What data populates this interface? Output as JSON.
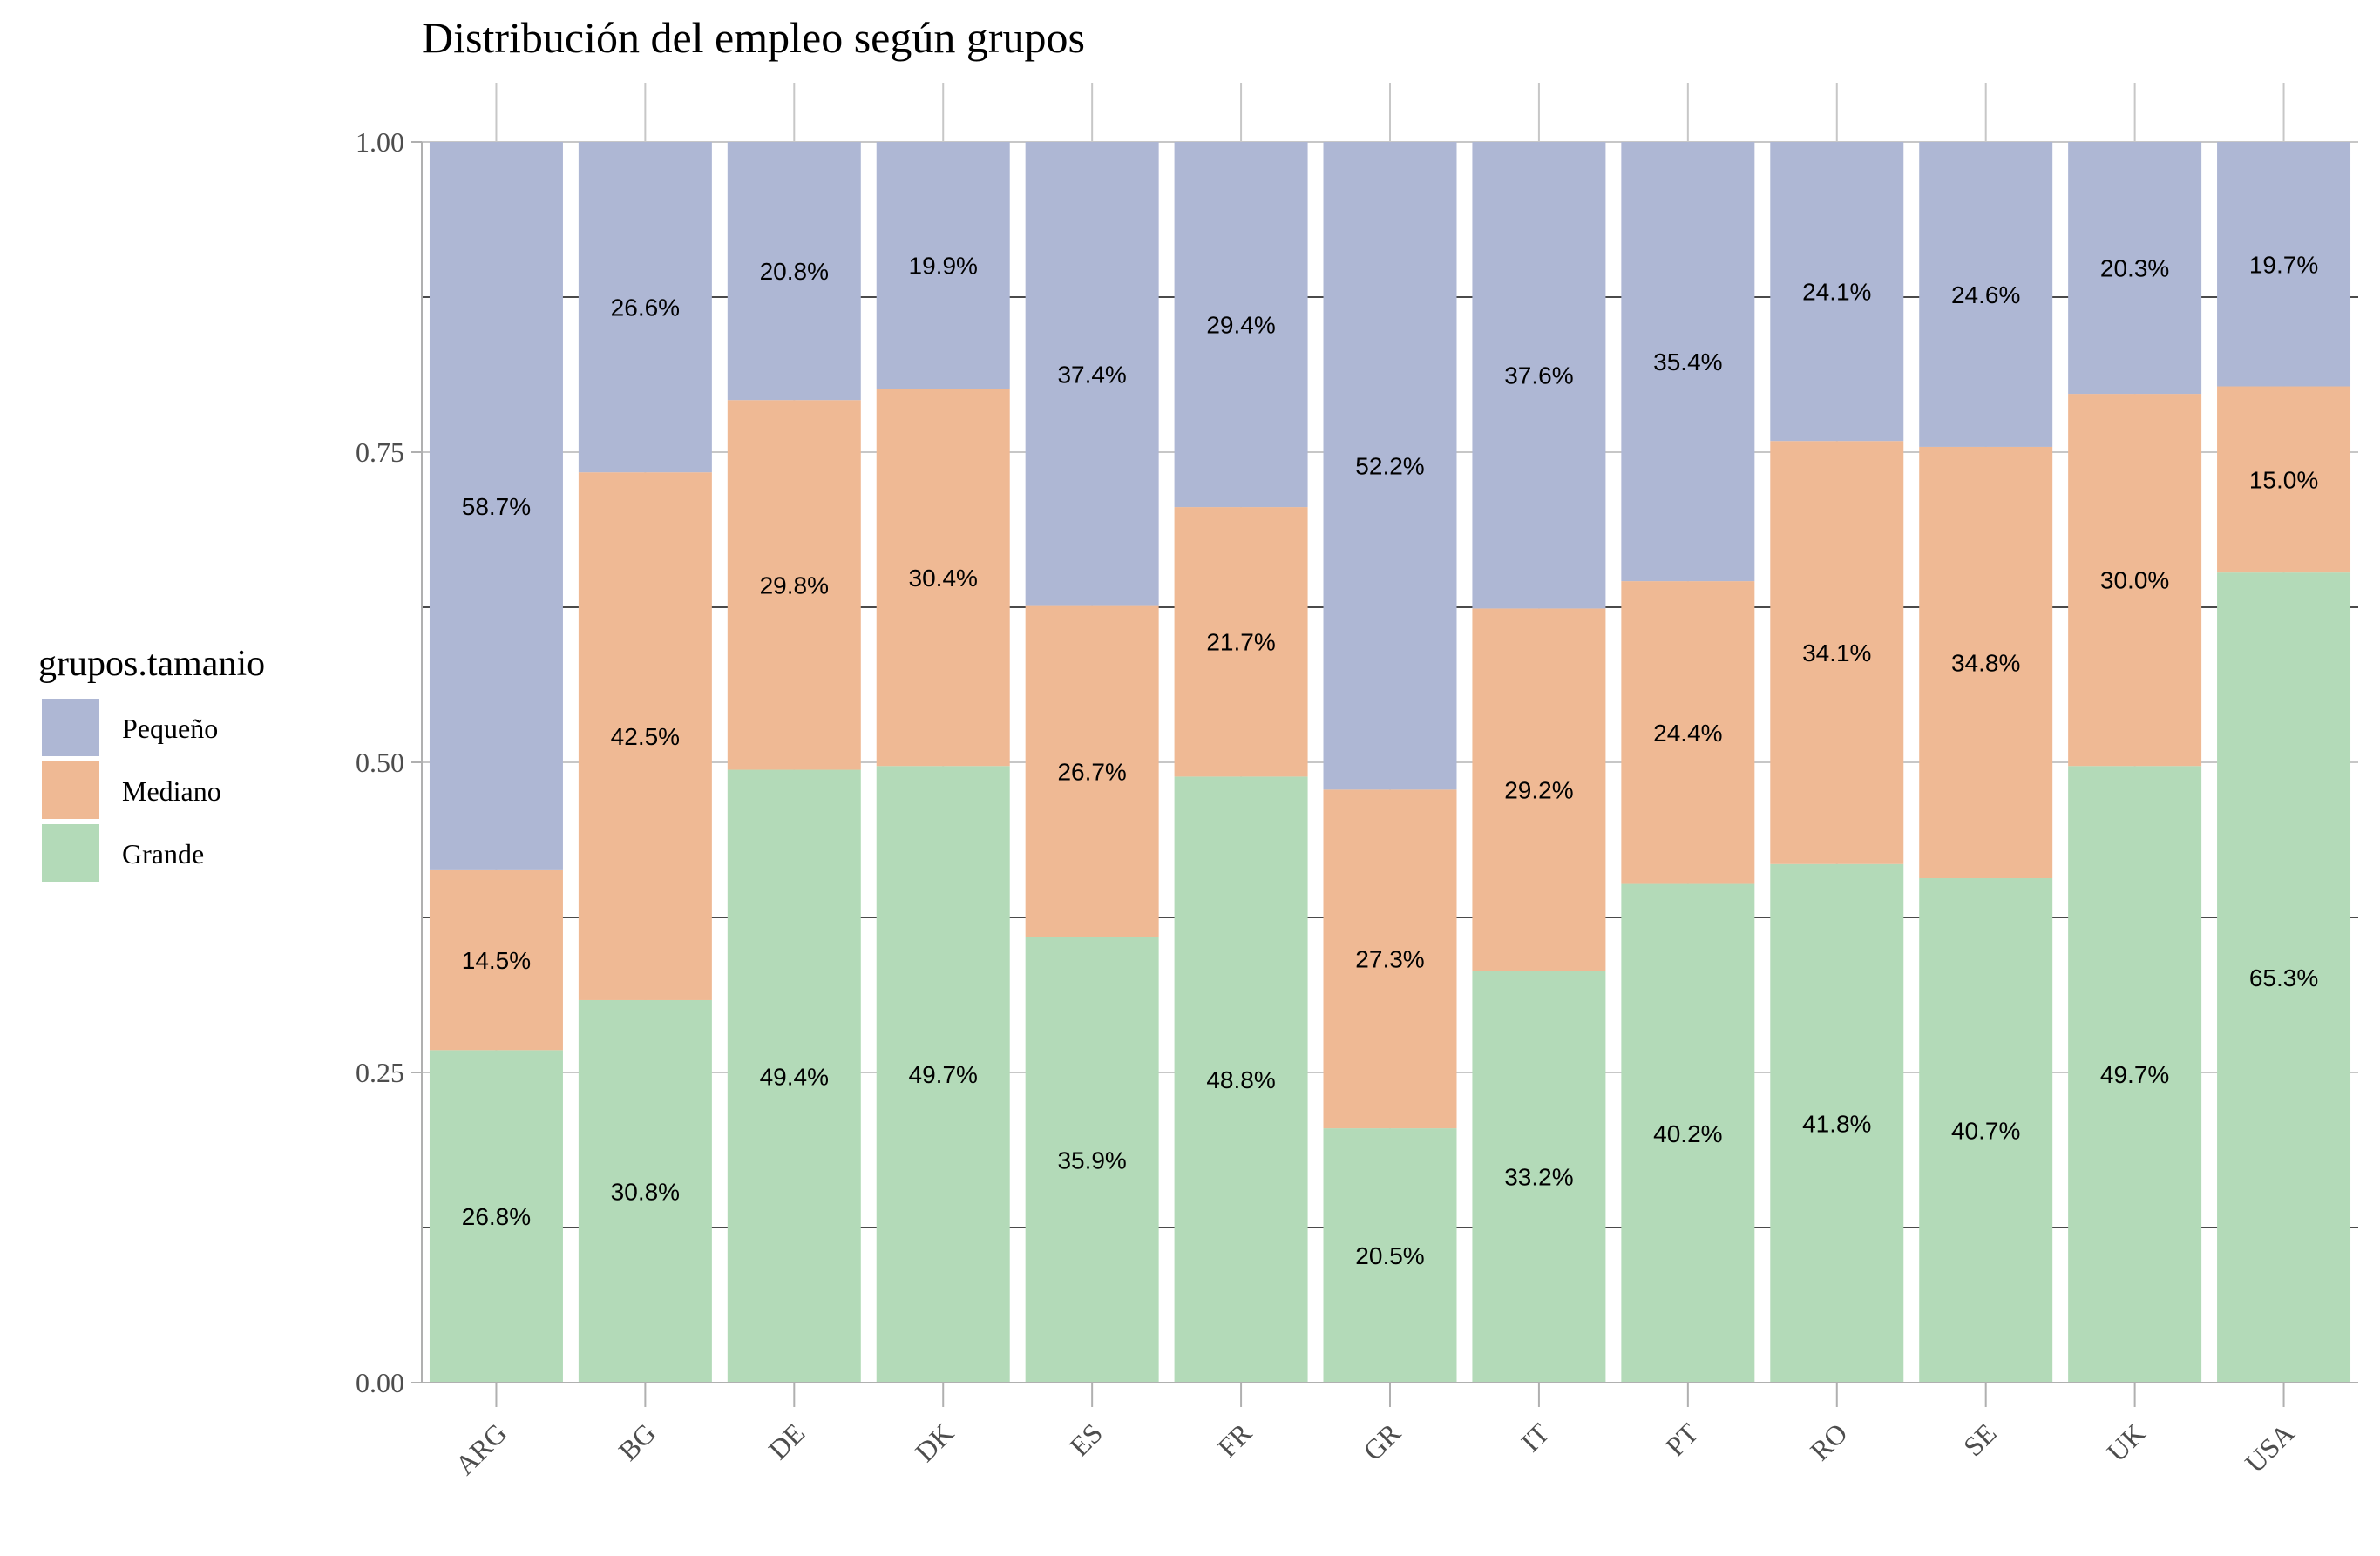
{
  "chart_data": {
    "type": "bar",
    "stacked": true,
    "normalized": true,
    "title": "Distribución del empleo según grupos",
    "xlabel": "",
    "ylabel": "",
    "ylim": [
      0,
      1
    ],
    "yticks": [
      "0.00",
      "0.25",
      "0.50",
      "0.75",
      "1.00"
    ],
    "categories": [
      "ARG",
      "BG",
      "DE",
      "DK",
      "ES",
      "FR",
      "GR",
      "IT",
      "PT",
      "RO",
      "SE",
      "UK",
      "USA"
    ],
    "series": [
      {
        "name": "Pequeño",
        "color": "#aeb7d4",
        "values": [
          0.587,
          0.266,
          0.208,
          0.199,
          0.374,
          0.294,
          0.522,
          0.376,
          0.354,
          0.241,
          0.246,
          0.203,
          0.197
        ],
        "labels": [
          "58.7%",
          "26.6%",
          "20.8%",
          "19.9%",
          "37.4%",
          "29.4%",
          "52.2%",
          "37.6%",
          "35.4%",
          "24.1%",
          "24.6%",
          "20.3%",
          "19.7%"
        ]
      },
      {
        "name": "Mediano",
        "color": "#efb994",
        "values": [
          0.145,
          0.425,
          0.298,
          0.304,
          0.267,
          0.217,
          0.273,
          0.292,
          0.244,
          0.341,
          0.348,
          0.3,
          0.15
        ],
        "labels": [
          "14.5%",
          "42.5%",
          "29.8%",
          "30.4%",
          "26.7%",
          "21.7%",
          "27.3%",
          "29.2%",
          "24.4%",
          "34.1%",
          "34.8%",
          "30.0%",
          "15.0%"
        ]
      },
      {
        "name": "Grande",
        "color": "#b3dab8",
        "values": [
          0.268,
          0.308,
          0.494,
          0.497,
          0.359,
          0.488,
          0.205,
          0.332,
          0.402,
          0.418,
          0.407,
          0.497,
          0.653
        ],
        "labels": [
          "26.8%",
          "30.8%",
          "49.4%",
          "49.7%",
          "35.9%",
          "48.8%",
          "20.5%",
          "33.2%",
          "40.2%",
          "41.8%",
          "40.7%",
          "49.7%",
          "65.3%"
        ]
      }
    ],
    "legend": {
      "title": "grupos.tamanio",
      "position": "left",
      "entries": [
        "Pequeño",
        "Mediano",
        "Grande"
      ]
    },
    "grid": true
  }
}
